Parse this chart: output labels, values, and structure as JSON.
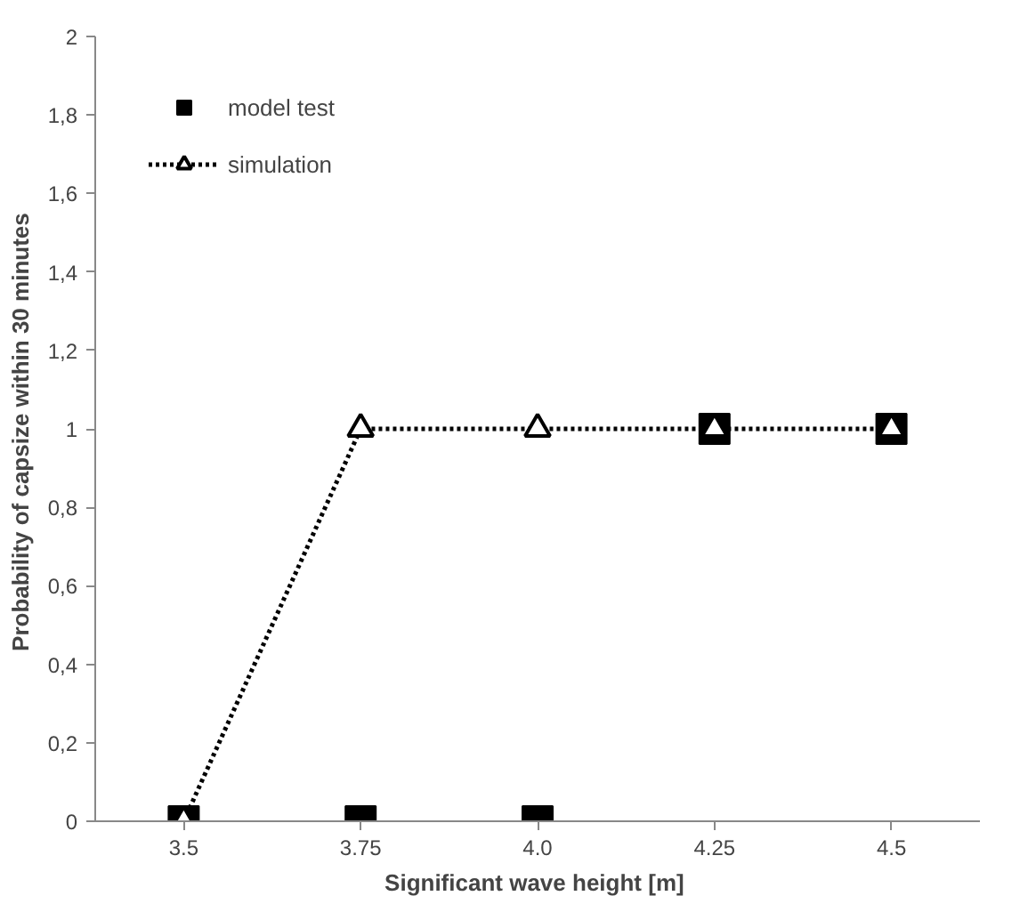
{
  "chart_data": {
    "type": "scatter",
    "xlabel": "Significant  wave height [m]",
    "ylabel": "Probability of capsize  within 30 minutes",
    "categories": [
      "3.5",
      "3.75",
      "4.0",
      "4.25",
      "4.5"
    ],
    "series": [
      {
        "name": "model test",
        "marker": "square",
        "color": "#000000",
        "values": [
          0,
          0,
          0,
          1,
          1
        ]
      },
      {
        "name": "simulation",
        "type": "line",
        "marker": "triangle",
        "line_style": "dotted",
        "color": "#000000",
        "values": [
          0,
          1,
          1,
          1,
          1
        ]
      }
    ],
    "ylim": [
      0,
      2
    ],
    "yticks": [
      0,
      {
        "value": 0.2,
        "label": "0,2"
      },
      {
        "value": 0.4,
        "label": "0,4"
      },
      {
        "value": 0.6,
        "label": "0,6"
      },
      {
        "value": 0.8,
        "label": "0,8"
      },
      1,
      {
        "value": 1.2,
        "label": "1,2"
      },
      {
        "value": 1.4,
        "label": "1,4"
      },
      {
        "value": 1.6,
        "label": "1,6"
      },
      {
        "value": 1.8,
        "label": "1,8"
      },
      2
    ],
    "grid": false,
    "legend": "top left"
  }
}
